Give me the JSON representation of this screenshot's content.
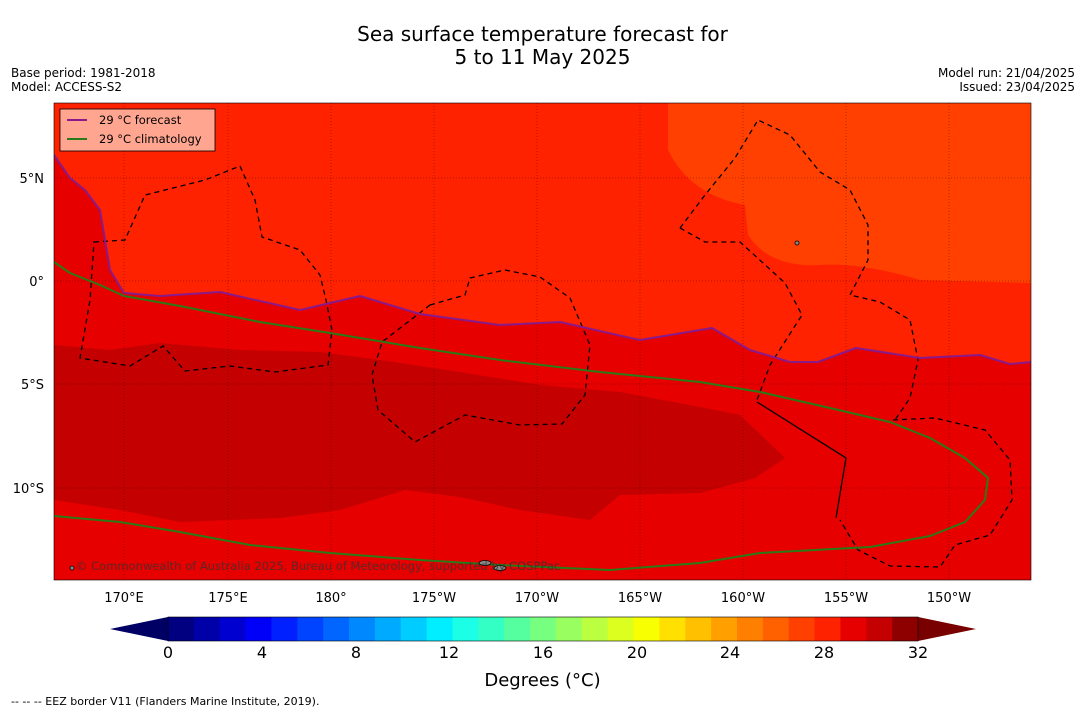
{
  "title": {
    "line1": "Sea surface temperature forecast for",
    "line2": "5 to 11 May 2025"
  },
  "meta": {
    "base_period": "Base period: 1981-2018",
    "model": "Model: ACCESS-S2",
    "model_run": "Model run: 21/04/2025",
    "issued": "Issued: 23/04/2025"
  },
  "legend": {
    "forecast_label": "29 °C  forecast",
    "forecast_color": "#8a1a8a",
    "climatology_label": "29 °C  climatology",
    "climatology_color": "#2a7a18"
  },
  "map": {
    "lat_labels": [
      "5°N",
      "0°",
      "5°S",
      "10°S"
    ],
    "lon_labels": [
      "170°E",
      "175°E",
      "180°",
      "175°W",
      "170°W",
      "165°W",
      "160°W",
      "155°W",
      "150°W"
    ],
    "copyright": "© Commonwealth of Australia 2025, Bureau of Meteorology, supported by COSPPac",
    "colors": {
      "band_26_27": "#ff4000",
      "band_27_28": "#ff2200",
      "band_28_29": "#e60000",
      "band_29_30": "#c40000"
    }
  },
  "colorbar": {
    "ticks": [
      "0",
      "4",
      "8",
      "12",
      "16",
      "20",
      "24",
      "28",
      "32"
    ],
    "label": "Degrees ($^\\circ$C)",
    "label_display": "Degrees (°C)",
    "under_color": "#000064",
    "over_color": "#780000",
    "colors": [
      "#000080",
      "#0000a8",
      "#0000d0",
      "#0000f8",
      "#0020ff",
      "#0044ff",
      "#0066ff",
      "#0088ff",
      "#00aaff",
      "#00ccff",
      "#00eeff",
      "#1affe6",
      "#33ffc4",
      "#55ffa0",
      "#77ff80",
      "#99ff60",
      "#bbff40",
      "#ddff20",
      "#f8ff00",
      "#ffe000",
      "#ffc000",
      "#ffa000",
      "#ff8000",
      "#ff6000",
      "#ff4000",
      "#ff2200",
      "#e60000",
      "#c40000",
      "#8e0000"
    ]
  },
  "footer": "--  --  -- EEZ border V11 (Flanders Marine Institute, 2019)."
}
